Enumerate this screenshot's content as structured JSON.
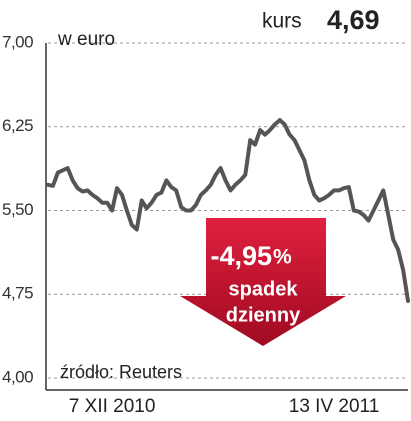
{
  "chart_data": {
    "type": "line",
    "ylabel": "w euro",
    "price_label": "kurs",
    "price": "4,69",
    "change": "-4,95",
    "change_unit": "%",
    "change_text": [
      "spadek",
      "dzienny"
    ],
    "source": "źródło: Reuters",
    "categories": [
      null,
      null,
      null,
      null,
      null,
      null,
      null,
      null,
      null,
      null,
      null,
      null,
      null,
      "7 XII 2010",
      null,
      null,
      null,
      null,
      null,
      null,
      null,
      null,
      null,
      null,
      null,
      null,
      null,
      null,
      null,
      null,
      null,
      null,
      null,
      null,
      null,
      null,
      null,
      null,
      null,
      null,
      null,
      null,
      null,
      null,
      null,
      null,
      null,
      null,
      null,
      null,
      null,
      null,
      null,
      null,
      null,
      null,
      null,
      null,
      "13 IV 2011",
      null,
      null,
      null,
      null,
      null,
      null,
      null,
      null,
      null,
      null,
      null,
      null,
      null,
      null,
      null
    ],
    "series": [
      {
        "name": null,
        "color": "#555555",
        "values": [
          5.73,
          5.72,
          5.84,
          5.86,
          5.88,
          5.77,
          5.7,
          5.67,
          5.68,
          5.64,
          5.61,
          5.57,
          5.57,
          5.5,
          5.7,
          5.64,
          5.5,
          5.37,
          5.33,
          5.59,
          5.52,
          5.57,
          5.64,
          5.66,
          5.77,
          5.71,
          5.68,
          5.53,
          5.5,
          5.5,
          5.55,
          5.64,
          5.68,
          5.73,
          5.82,
          5.88,
          5.77,
          5.68,
          5.73,
          5.77,
          5.82,
          6.13,
          6.09,
          6.22,
          6.18,
          6.22,
          6.27,
          6.31,
          6.27,
          6.18,
          6.13,
          6.04,
          5.95,
          5.77,
          5.64,
          5.59,
          5.61,
          5.64,
          5.68,
          5.68,
          5.7,
          5.71,
          5.5,
          5.49,
          5.46,
          5.41,
          5.5,
          5.59,
          5.68,
          5.46,
          5.24,
          5.15,
          4.97,
          4.69
        ]
      }
    ],
    "ylim": [
      4,
      7
    ],
    "yticks": [
      {
        "value": 4,
        "label": "4,00"
      },
      {
        "value": 4.75,
        "label": "4,75"
      },
      {
        "value": 5.5,
        "label": "5,50"
      },
      {
        "value": 6.25,
        "label": "6,25"
      },
      {
        "value": 7,
        "label": "7,00"
      }
    ],
    "grid": true
  }
}
